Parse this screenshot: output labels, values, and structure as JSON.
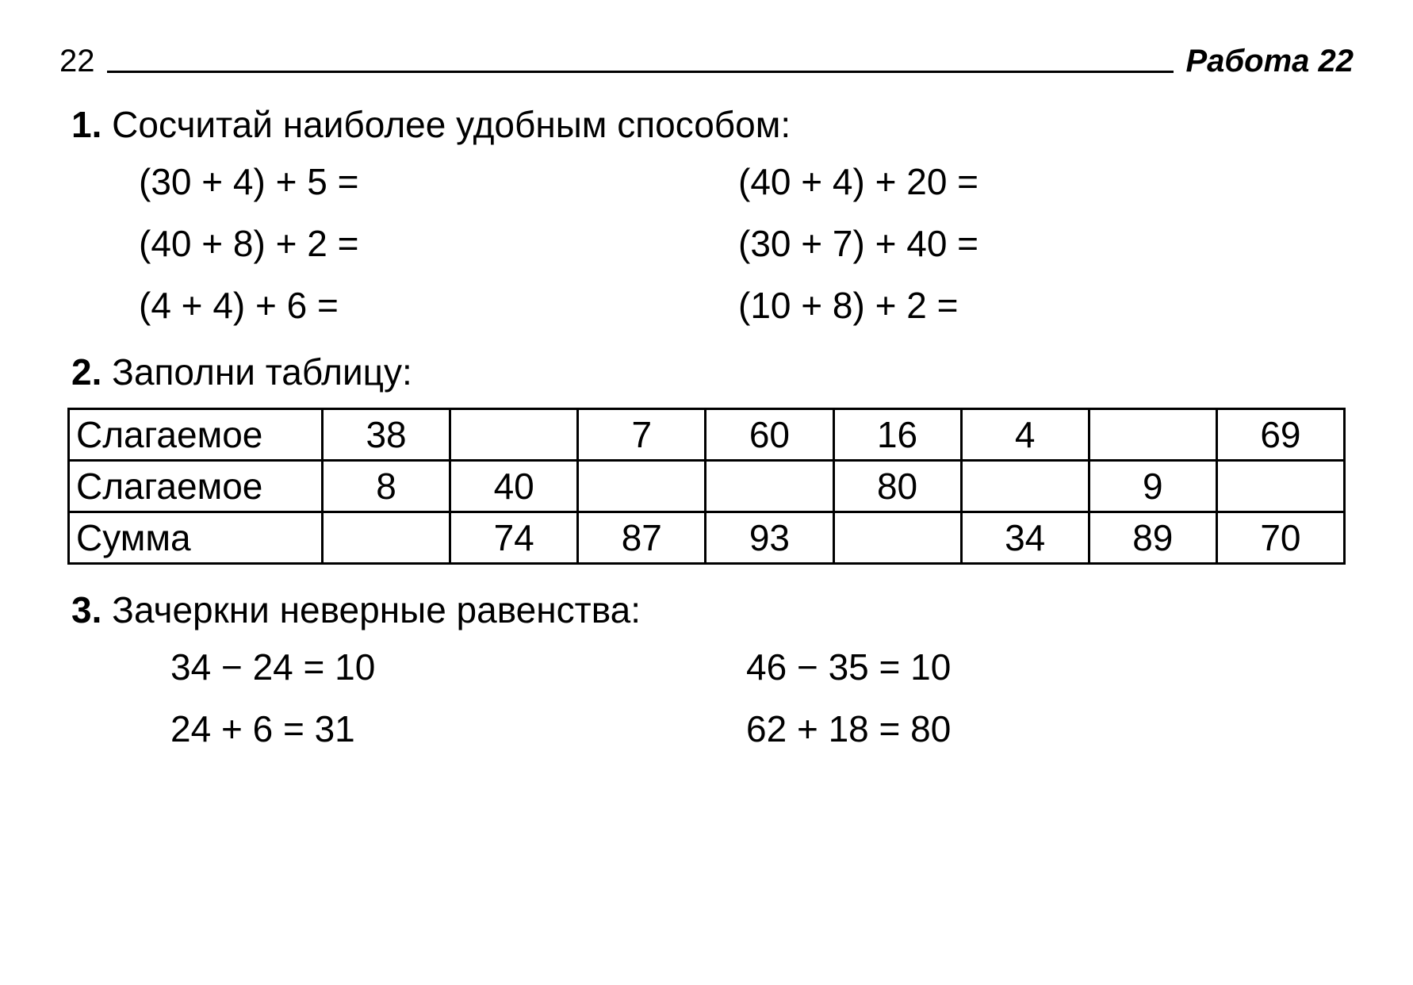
{
  "header": {
    "page_number": "22",
    "title": "Работа 22"
  },
  "task1": {
    "number": "1.",
    "text": "Сосчитай наиболее удобным способом:",
    "expressions": {
      "left": [
        "(30 + 4) + 5 =",
        "(40 + 8) + 2 =",
        "(4 + 4) + 6 ="
      ],
      "right": [
        "(40 + 4) + 20 =",
        "(30 + 7) + 40 =",
        "(10 + 8) + 2 ="
      ]
    }
  },
  "task2": {
    "number": "2.",
    "text": "Заполни таблицу:",
    "table": {
      "rows": [
        {
          "label": "Слагаемое",
          "cells": [
            "38",
            "",
            "7",
            "60",
            "16",
            "4",
            "",
            "69"
          ]
        },
        {
          "label": "Слагаемое",
          "cells": [
            "8",
            "40",
            "",
            "",
            "80",
            "",
            "9",
            ""
          ]
        },
        {
          "label": "Сумма",
          "cells": [
            "",
            "74",
            "87",
            "93",
            "",
            "34",
            "89",
            "70"
          ]
        }
      ]
    }
  },
  "task3": {
    "number": "3.",
    "text": "Зачеркни неверные равенства:",
    "equations": {
      "left": [
        "34 − 24 = 10",
        "24 + 6 = 31"
      ],
      "right": [
        "46 − 35 = 10",
        "62 + 18 = 80"
      ]
    }
  },
  "style": {
    "font_family": "Arial, Helvetica, sans-serif",
    "text_color": "#000000",
    "background_color": "#ffffff",
    "border_color": "#000000",
    "header_fontsize": 40,
    "body_fontsize": 46,
    "table_border_width": 3
  }
}
